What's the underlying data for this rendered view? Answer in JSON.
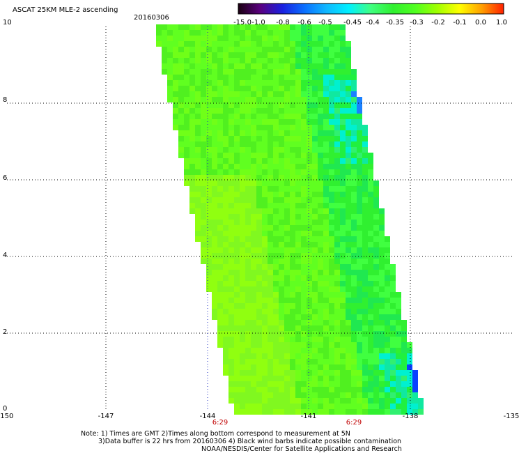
{
  "header": {
    "title": "ASCAT 25KM MLE-2 ascending",
    "date": "20160306"
  },
  "colorbar": {
    "labels": [
      "-15.0",
      "-1.0",
      "-0.8",
      "-0.6",
      "-0.5",
      "-0.45",
      "-0.4",
      "-0.35",
      "-0.3",
      "-0.2",
      "-0.1",
      "0.0",
      "1.0"
    ],
    "colors": [
      "#1a0010",
      "#5a0080",
      "#1a20e0",
      "#0a70ff",
      "#10b8ff",
      "#00f0ff",
      "#40ff80",
      "#30f030",
      "#50ff20",
      "#a0ff00",
      "#ffff00",
      "#ffa000",
      "#ff2000"
    ]
  },
  "axes": {
    "y_ticks": [
      "10",
      "8",
      "6",
      "4",
      "2",
      "0"
    ],
    "x_ticks": [
      "-150",
      "-147",
      "-144",
      "-141",
      "-138",
      "-135"
    ],
    "time_labels": [
      "6:29",
      "6:29"
    ]
  },
  "notes": {
    "line1": "Note: 1) Times are GMT 2)Times along bottom correspond to measurement at 5N",
    "line2": "3)Data buffer is 22 hrs from 20160306 4) Black wind barbs indicate possible contamination",
    "line3": "NOAA/NESDIS/Center for Satellite Applications and Research"
  }
}
